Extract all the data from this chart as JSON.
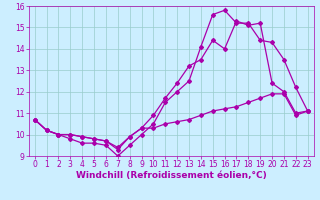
{
  "xlabel": "Windchill (Refroidissement éolien,°C)",
  "bg_color": "#cceeff",
  "line_color": "#aa00aa",
  "grid_color": "#99cccc",
  "spine_color": "#aa00aa",
  "xlim": [
    -0.5,
    23.5
  ],
  "ylim": [
    9,
    16
  ],
  "yticks": [
    9,
    10,
    11,
    12,
    13,
    14,
    15,
    16
  ],
  "xticks": [
    0,
    1,
    2,
    3,
    4,
    5,
    6,
    7,
    8,
    9,
    10,
    11,
    12,
    13,
    14,
    15,
    16,
    17,
    18,
    19,
    20,
    21,
    22,
    23
  ],
  "line1_x": [
    0,
    1,
    2,
    3,
    4,
    5,
    6,
    7,
    8,
    9,
    10,
    11,
    12,
    13,
    14,
    15,
    16,
    17,
    18,
    19,
    20,
    21,
    22,
    23
  ],
  "line1_y": [
    10.7,
    10.2,
    10.0,
    9.8,
    9.6,
    9.6,
    9.5,
    9.0,
    9.5,
    10.0,
    10.5,
    11.5,
    12.0,
    12.5,
    14.1,
    15.6,
    15.8,
    15.2,
    15.2,
    14.4,
    14.3,
    13.5,
    12.2,
    11.1
  ],
  "line2_x": [
    0,
    1,
    2,
    3,
    4,
    5,
    6,
    7,
    8,
    9,
    10,
    11,
    12,
    13,
    14,
    15,
    16,
    17,
    18,
    19,
    20,
    21,
    22,
    23
  ],
  "line2_y": [
    10.7,
    10.2,
    10.0,
    10.0,
    9.9,
    9.8,
    9.7,
    9.3,
    9.9,
    10.3,
    10.9,
    11.7,
    12.4,
    13.2,
    13.5,
    14.4,
    14.0,
    15.3,
    15.1,
    15.2,
    12.4,
    12.0,
    11.0,
    11.1
  ],
  "line3_x": [
    0,
    1,
    2,
    3,
    4,
    5,
    6,
    7,
    8,
    9,
    10,
    11,
    12,
    13,
    14,
    15,
    16,
    17,
    18,
    19,
    20,
    21,
    22,
    23
  ],
  "line3_y": [
    10.7,
    10.2,
    10.0,
    10.0,
    9.9,
    9.8,
    9.7,
    9.4,
    9.9,
    10.3,
    10.3,
    10.5,
    10.6,
    10.7,
    10.9,
    11.1,
    11.2,
    11.3,
    11.5,
    11.7,
    11.9,
    11.9,
    10.9,
    11.1
  ],
  "marker": "D",
  "markersize": 2.0,
  "linewidth": 0.9,
  "xlabel_fontsize": 6.5,
  "tick_fontsize": 5.5
}
